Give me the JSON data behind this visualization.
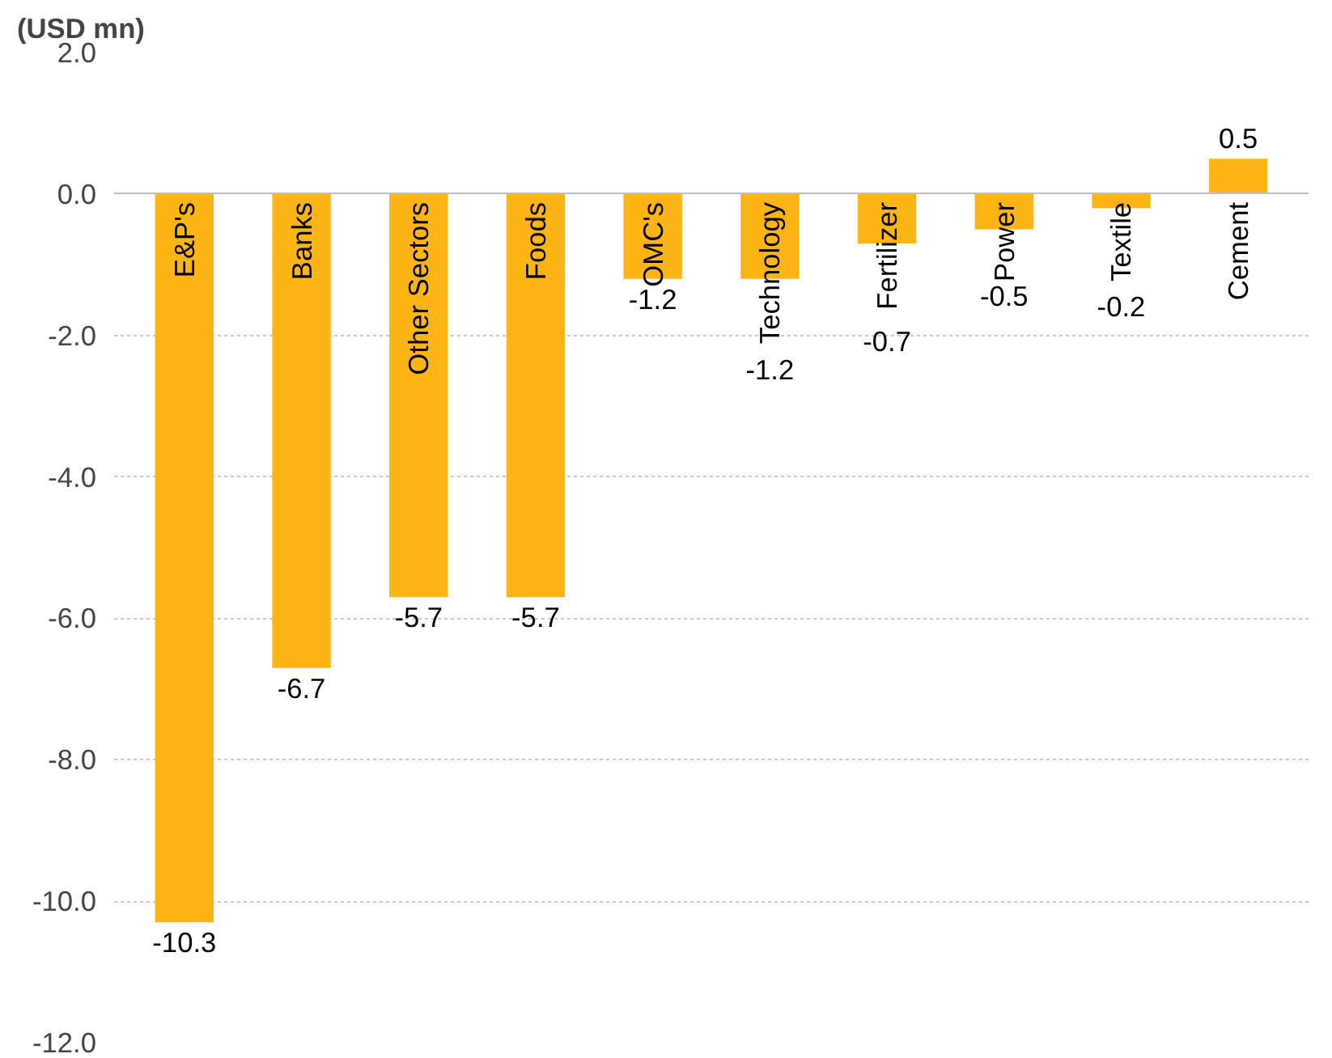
{
  "chart_data": {
    "type": "bar",
    "ylabel": "(USD mn)",
    "categories": [
      "E&P's",
      "Banks",
      "Other Sectors",
      "Foods",
      "OMC's",
      "Technology",
      "Fertilizer",
      "Power",
      "Textile",
      "Cement"
    ],
    "values": [
      -10.3,
      -6.7,
      -5.7,
      -5.7,
      -1.2,
      -1.2,
      -0.7,
      -0.5,
      -0.2,
      0.5
    ],
    "color": "#fdb515",
    "ylim": [
      -12,
      2
    ],
    "yticks": [
      {
        "value": 2,
        "label": "2.0"
      },
      {
        "value": 0,
        "label": "0.0"
      },
      {
        "value": -2,
        "label": "-2.0"
      },
      {
        "value": -4,
        "label": "-4.0"
      },
      {
        "value": -6,
        "label": "-6.0"
      },
      {
        "value": -8,
        "label": "-8.0"
      },
      {
        "value": -10,
        "label": "-10.0"
      },
      {
        "value": -12,
        "label": "-12.0"
      }
    ],
    "grid": "y",
    "data_labels": true
  }
}
